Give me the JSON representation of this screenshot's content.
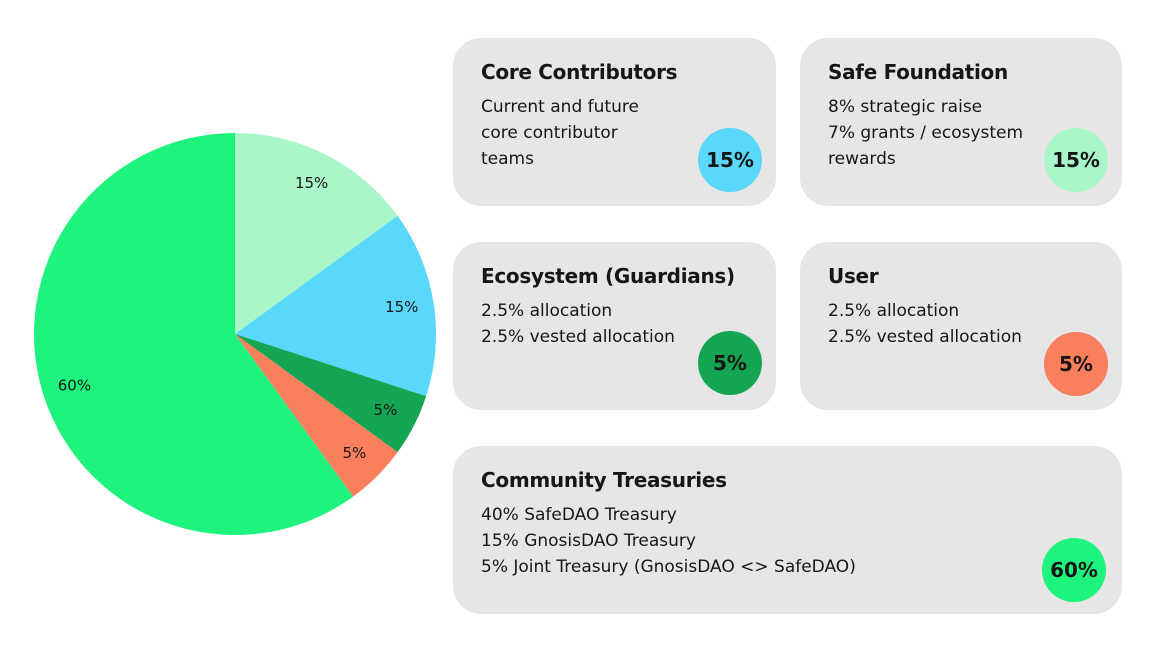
{
  "chart_data": {
    "type": "pie",
    "categories": [
      "Safe Foundation",
      "Core Contributors",
      "Ecosystem (Guardians)",
      "User",
      "Community Treasuries"
    ],
    "values": [
      15,
      15,
      5,
      5,
      60
    ],
    "value_labels": [
      "15%",
      "15%",
      "5%",
      "5%",
      "60%"
    ],
    "colors": [
      "#a9f7c9",
      "#5ad8fb",
      "#13a552",
      "#fa7f5c",
      "#1ef47d"
    ],
    "descriptions": [
      [
        "8% strategic raise",
        "7% grants / ecosystem",
        "rewards"
      ],
      [
        "Current and future",
        "core contributor",
        "teams"
      ],
      [
        "2.5% allocation",
        "2.5% vested allocation"
      ],
      [
        "2.5% allocation",
        "2.5% vested allocation"
      ],
      [
        "40% SafeDAO Treasury",
        "15% GnosisDAO Treasury",
        "5% Joint Treasury (GnosisDAO <> SafeDAO)"
      ]
    ]
  }
}
